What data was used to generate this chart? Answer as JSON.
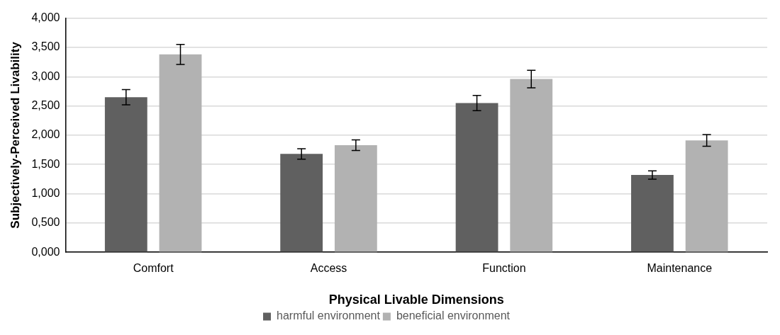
{
  "chart_data": {
    "type": "bar",
    "xlabel": "Physical Livable Dimensions",
    "ylabel": "Subjectively-Perceived Livability",
    "categories": [
      "Comfort",
      "Access",
      "Function",
      "Maintenance"
    ],
    "series": [
      {
        "name": "harmful environment",
        "color": "#606060",
        "values": [
          2.65,
          1.68,
          2.55,
          1.32
        ],
        "errors": [
          0.13,
          0.09,
          0.13,
          0.07
        ]
      },
      {
        "name": "beneficial environment",
        "color": "#b2b2b2",
        "values": [
          3.38,
          1.83,
          2.96,
          1.91
        ],
        "errors": [
          0.17,
          0.09,
          0.15,
          0.1
        ]
      }
    ],
    "ylim": [
      0,
      4
    ],
    "yticks": [
      {
        "value": 0,
        "label": "0,000"
      },
      {
        "value": 0.5,
        "label": "0,500"
      },
      {
        "value": 1,
        "label": "1,000"
      },
      {
        "value": 1.5,
        "label": "1,500"
      },
      {
        "value": 2,
        "label": "2,000"
      },
      {
        "value": 2.5,
        "label": "2,500"
      },
      {
        "value": 3,
        "label": "3,000"
      },
      {
        "value": 3.5,
        "label": "3,500"
      },
      {
        "value": 4,
        "label": "4,000"
      }
    ],
    "grid": "y",
    "legend": "bottom"
  }
}
